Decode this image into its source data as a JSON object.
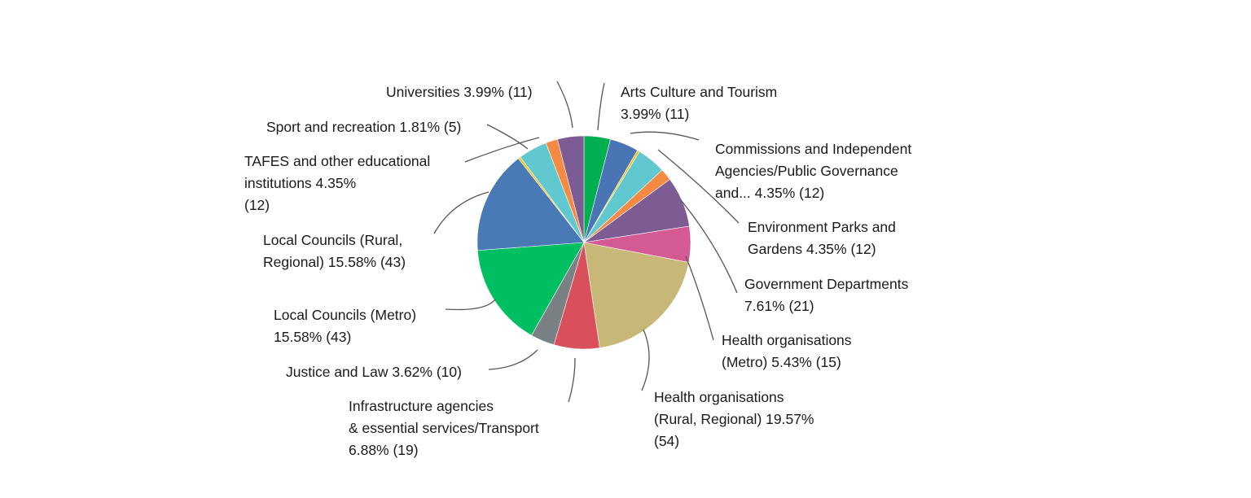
{
  "chart_data": {
    "type": "pie",
    "title": "",
    "slices": [
      {
        "label": "Arts Culture and Tourism",
        "pct_text": "3.99%",
        "count": 11,
        "value": 3.99,
        "color": "#00b050"
      },
      {
        "label": "Commissions and Independent Agencies/Public Governance and...",
        "pct_text": "4.35%",
        "count": 12,
        "value": 4.35,
        "color": "#4a75b5"
      },
      {
        "label": "",
        "pct_text": "",
        "count": null,
        "value": 0.36,
        "color": "#f2c312"
      },
      {
        "label": "Environment Parks and Gardens",
        "pct_text": "4.35%",
        "count": 12,
        "value": 4.35,
        "color": "#62c8cf"
      },
      {
        "label": "",
        "pct_text": "",
        "count": null,
        "value": 1.81,
        "color": "#f58a42"
      },
      {
        "label": "Government Departments",
        "pct_text": "7.61%",
        "count": 21,
        "value": 7.61,
        "color": "#7d5c94"
      },
      {
        "label": "Health organisations (Metro)",
        "pct_text": "5.43%",
        "count": 15,
        "value": 5.43,
        "color": "#d45a93"
      },
      {
        "label": "Health organisations (Rural, Regional)",
        "pct_text": "19.57%",
        "count": 54,
        "value": 19.57,
        "color": "#c8b878"
      },
      {
        "label": "Infrastructure agencies & essential services/Transport",
        "pct_text": "6.88%",
        "count": 19,
        "value": 6.88,
        "color": "#d94f5c"
      },
      {
        "label": "Justice and Law",
        "pct_text": "3.62%",
        "count": 10,
        "value": 3.62,
        "color": "#7a8185"
      },
      {
        "label": "Local Councils (Metro)",
        "pct_text": "15.58%",
        "count": 43,
        "value": 15.58,
        "color": "#00bf63"
      },
      {
        "label": "Local Councils (Rural, Regional)",
        "pct_text": "15.58%",
        "count": 43,
        "value": 15.58,
        "color": "#4a7ab5"
      },
      {
        "label": "",
        "pct_text": "",
        "count": null,
        "value": 0.36,
        "color": "#f2c312"
      },
      {
        "label": "TAFES and other educational institutions",
        "pct_text": "4.35%",
        "count": 12,
        "value": 4.35,
        "color": "#62c8cf"
      },
      {
        "label": "Sport and recreation",
        "pct_text": "1.81%",
        "count": 5,
        "value": 1.81,
        "color": "#f58a42"
      },
      {
        "label": "Universities",
        "pct_text": "3.99%",
        "count": 11,
        "value": 3.99,
        "color": "#7d5c94"
      }
    ],
    "labels": [
      {
        "lines": [
          "Arts Culture and Tourism",
          "3.99% (11)"
        ]
      },
      {
        "lines": [
          "Commissions and Independent",
          "Agencies/Public Governance",
          "and... 4.35% (12)"
        ]
      },
      {
        "lines": [
          "Environment Parks and",
          "Gardens 4.35% (12)"
        ]
      },
      {
        "lines": [
          "Government Departments",
          "7.61% (21)"
        ]
      },
      {
        "lines": [
          "Health organisations",
          "(Metro) 5.43% (15)"
        ]
      },
      {
        "lines": [
          "Health organisations",
          "(Rural, Regional) 19.57%",
          "(54)"
        ]
      },
      {
        "lines": [
          "Infrastructure agencies",
          "& essential services/Transport",
          "6.88% (19)"
        ]
      },
      {
        "lines": [
          "Justice and Law 3.62% (10)"
        ]
      },
      {
        "lines": [
          "Local Councils (Metro)",
          "15.58% (43)"
        ]
      },
      {
        "lines": [
          "Local Councils (Rural,",
          "Regional) 15.58% (43)"
        ]
      },
      {
        "lines": [
          "TAFES and other educational",
          "institutions 4.35%",
          "(12)"
        ]
      },
      {
        "lines": [
          "Sport and recreation 1.81% (5)"
        ]
      },
      {
        "lines": [
          "Universities 3.99% (11)"
        ]
      }
    ]
  }
}
